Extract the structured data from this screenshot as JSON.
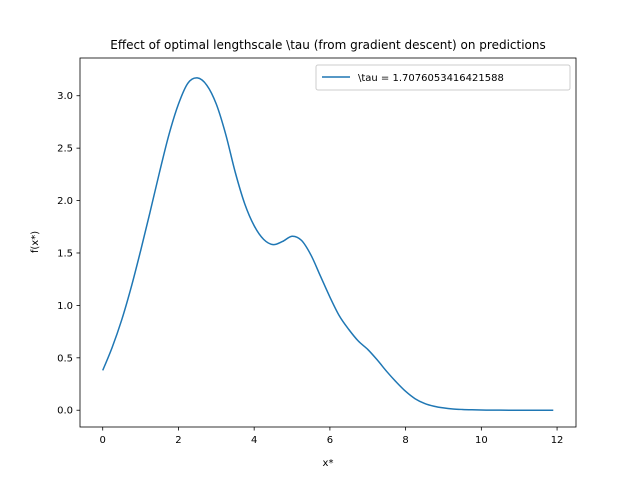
{
  "chart_data": {
    "type": "line",
    "title": "Effect of optimal lengthscale \\tau (from gradient descent) on predictions",
    "xlabel": "x*",
    "ylabel": "f(x*)",
    "xlim": [
      -0.6,
      12.5
    ],
    "ylim": [
      -0.16,
      3.36
    ],
    "xticks": [
      0,
      2,
      4,
      6,
      8,
      10,
      12
    ],
    "yticks": [
      0.0,
      0.5,
      1.0,
      1.5,
      2.0,
      2.5,
      3.0
    ],
    "xtick_labels": [
      "0",
      "2",
      "4",
      "6",
      "8",
      "10",
      "12"
    ],
    "ytick_labels": [
      "0.0",
      "0.5",
      "1.0",
      "1.5",
      "2.0",
      "2.5",
      "3.0"
    ],
    "grid": false,
    "legend_position": "top-right",
    "series": [
      {
        "name": "\\tau = 1.7076053416421588",
        "color": "#1f77b4",
        "x": [
          0,
          0.25,
          0.5,
          0.75,
          1.0,
          1.25,
          1.5,
          1.75,
          2.0,
          2.25,
          2.5,
          2.75,
          3.0,
          3.25,
          3.5,
          3.75,
          4.0,
          4.25,
          4.5,
          4.75,
          5.0,
          5.25,
          5.5,
          5.75,
          6.0,
          6.25,
          6.5,
          6.75,
          7.0,
          7.25,
          7.5,
          7.75,
          8.0,
          8.25,
          8.5,
          8.75,
          9.0,
          9.25,
          9.5,
          9.75,
          10.0,
          10.25,
          10.5,
          10.75,
          11.0,
          11.5,
          11.9
        ],
        "y": [
          0.38,
          0.6,
          0.86,
          1.17,
          1.52,
          1.89,
          2.27,
          2.63,
          2.92,
          3.12,
          3.17,
          3.1,
          2.92,
          2.63,
          2.27,
          1.97,
          1.76,
          1.63,
          1.58,
          1.61,
          1.66,
          1.62,
          1.48,
          1.28,
          1.08,
          0.9,
          0.77,
          0.66,
          0.58,
          0.48,
          0.37,
          0.27,
          0.18,
          0.11,
          0.065,
          0.038,
          0.022,
          0.012,
          0.007,
          0.004,
          0.002,
          0.001,
          0.001,
          0.0,
          0.0,
          0.0,
          0.0
        ]
      }
    ]
  }
}
